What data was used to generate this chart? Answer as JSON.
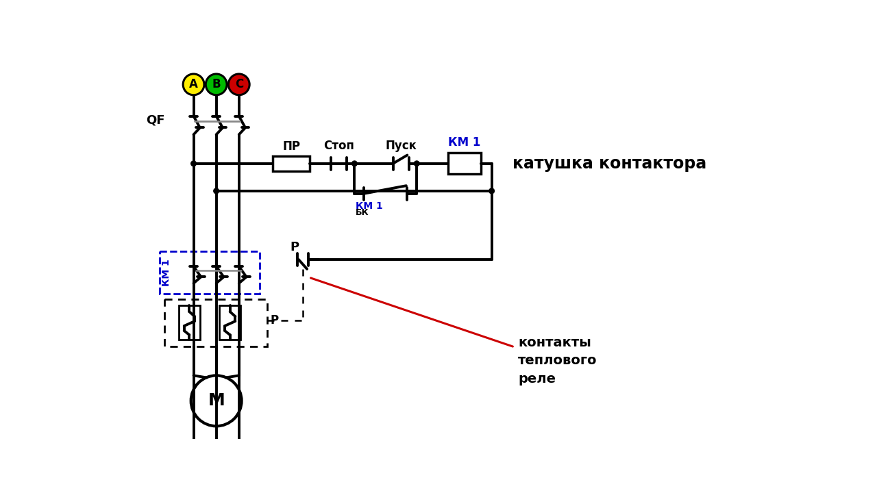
{
  "bg": "#ffffff",
  "lc": "#000000",
  "blue": "#0000cc",
  "red": "#cc0000",
  "gray": "#888888",
  "yell": "#ffee00",
  "green": "#00bb00",
  "phase_colors": [
    "#ffee00",
    "#00bb00",
    "#cc0000"
  ],
  "phase_labels": [
    "A",
    "B",
    "C"
  ],
  "lQF": "QF",
  "lPR": "ПР",
  "lSTOP": "Стоп",
  "lSTART": "Пуск",
  "lKM1c": "КМ 1",
  "lcoil": "катушка контактора",
  "lKM1bk": "КМ 1",
  "lBK": "БК",
  "lKM1pw": "КМ 1",
  "lP1": "Р",
  "lP2": "Р",
  "lM": "М",
  "lcontacts": "контакты\nтеплового\nреле"
}
